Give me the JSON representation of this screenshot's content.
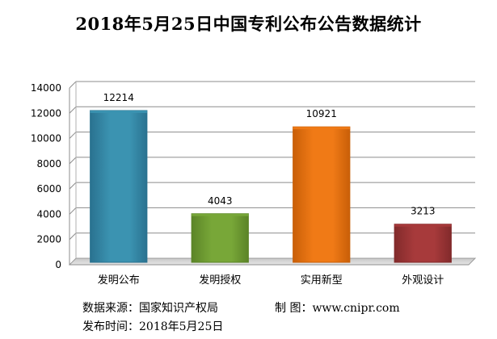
{
  "chart_data": {
    "type": "bar",
    "title": "2018年5月25日中国专利公布公告数据统计",
    "categories": [
      "发明公布",
      "发明授权",
      "实用新型",
      "外观设计"
    ],
    "values": [
      12214,
      4043,
      10921,
      3213
    ],
    "data_labels": [
      "12214",
      "4043",
      "10921",
      "3213"
    ],
    "ylim": [
      0,
      14000
    ],
    "yticks": [
      0,
      2000,
      4000,
      6000,
      8000,
      10000,
      12000,
      14000
    ],
    "ytick_labels": [
      "0",
      "2000",
      "4000",
      "6000",
      "8000",
      "10000",
      "12000",
      "14000"
    ],
    "xlabel": "",
    "ylabel": "",
    "grid": true,
    "bar_colors": [
      "#3b93b1",
      "#78a738",
      "#f07a16",
      "#a73a3b"
    ],
    "bar_edge_colors": [
      "#2a7290",
      "#5b8427",
      "#c95f08",
      "#822a2b"
    ]
  },
  "footer": {
    "source": "数据来源：国家知识产权局",
    "credit": "制  图：www.cnipr.com",
    "date": "发布时间：2018年5月25日"
  }
}
